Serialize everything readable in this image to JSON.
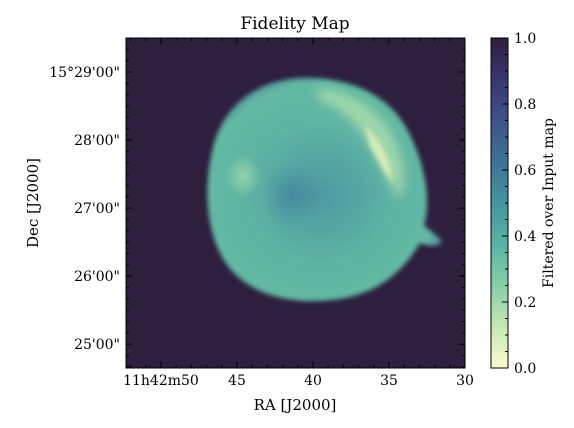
{
  "chart_data": {
    "type": "heatmap",
    "title": "Fidelity Map",
    "xlabel": "RA [J2000]",
    "ylabel": "Dec [J2000]",
    "x_tick_labels": [
      "11h42m50",
      "45",
      "40",
      "35",
      "30"
    ],
    "x_tick_values_sec": [
      50,
      45,
      40,
      35,
      30
    ],
    "xlim_sec": [
      52.3,
      30.0
    ],
    "y_tick_labels": [
      "15°29'00\"",
      "28'00\"",
      "27'00\"",
      "26'00\"",
      "25'00\""
    ],
    "y_tick_values_arcmin": [
      29,
      28,
      27,
      26,
      25
    ],
    "ylim_arcmin": [
      24.65,
      29.5
    ],
    "colorbar": {
      "label": "Filtered over Input map",
      "tick_labels": [
        "0.0",
        "0.2",
        "0.4",
        "0.6",
        "0.8",
        "1.0"
      ],
      "ticks": [
        0.0,
        0.2,
        0.4,
        0.6,
        0.8,
        1.0
      ],
      "range": [
        0.0,
        1.0
      ]
    },
    "background_value": 1.0,
    "structure": {
      "description_values": [
        {
          "name": "disk",
          "center_ra_sec": 40.0,
          "center_dec_arcmin": 27.2,
          "radius_arcmin": 1.45,
          "value": 0.45
        },
        {
          "name": "bright-rim-east-arc",
          "value": 0.3
        },
        {
          "name": "west-knot",
          "ra_sec": 43.4,
          "dec_arcmin": 27.45,
          "value": 0.38
        },
        {
          "name": "interior-dark-patch",
          "ra_sec": 40.0,
          "dec_arcmin": 27.0,
          "value": 0.6
        }
      ]
    },
    "colormap": [
      "#fcfcd0",
      "#c9e8b4",
      "#87cfa7",
      "#5ab4a3",
      "#4495a0",
      "#3f7395",
      "#3f5389",
      "#3a3770",
      "#2e1f3f"
    ]
  }
}
